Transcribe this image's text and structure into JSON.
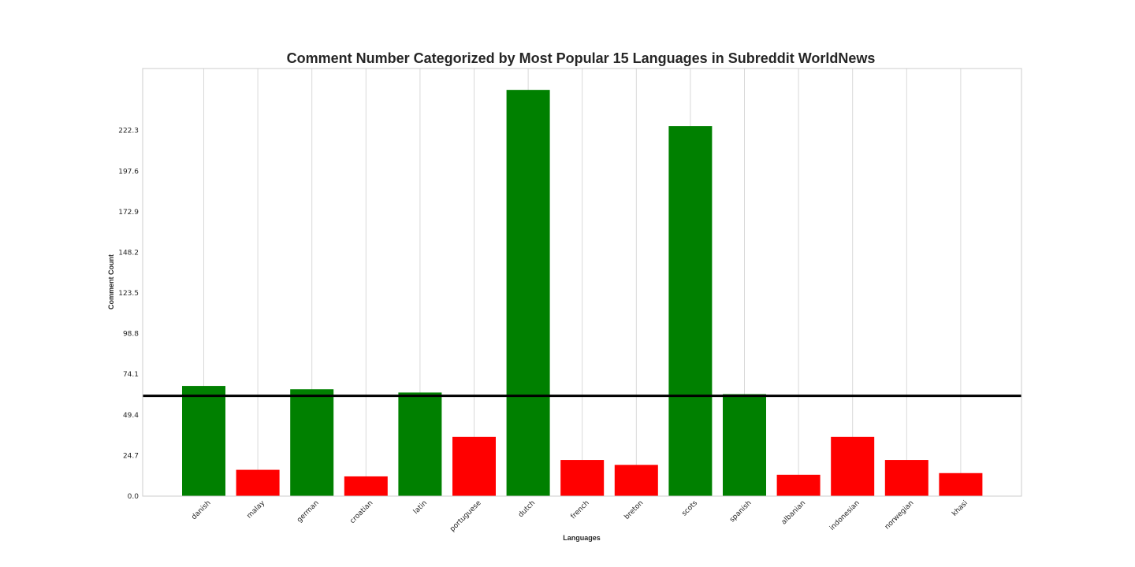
{
  "chart_data": {
    "type": "bar",
    "title": "Comment Number Categorized by Most Popular 15 Languages in Subreddit WorldNews",
    "xlabel": "Languages",
    "ylabel": "Comment Count",
    "categories": [
      "danish",
      "malay",
      "german",
      "croatian",
      "latin",
      "portuguese",
      "dutch",
      "french",
      "breton",
      "scots",
      "spanish",
      "albanian",
      "indonesian",
      "norwegian",
      "khasi"
    ],
    "values": [
      67,
      16,
      65,
      12,
      63,
      36,
      247,
      22,
      19,
      225,
      62,
      13,
      36,
      22,
      14
    ],
    "bar_colors": [
      "#008000",
      "#ff0000",
      "#008000",
      "#ff0000",
      "#008000",
      "#ff0000",
      "#008000",
      "#ff0000",
      "#ff0000",
      "#008000",
      "#008000",
      "#ff0000",
      "#ff0000",
      "#ff0000",
      "#ff0000"
    ],
    "yticks": [
      "0.0",
      "24.7",
      "49.4",
      "74.1",
      "98.8",
      "123.5",
      "148.2",
      "172.9",
      "197.6",
      "222.3"
    ],
    "ylim": [
      0,
      260
    ],
    "reference_line": {
      "value": 61,
      "color": "#000000"
    },
    "grid": true,
    "style": {
      "axes_edge": "#cccccc",
      "grid_color": "#d9d9d9"
    }
  }
}
